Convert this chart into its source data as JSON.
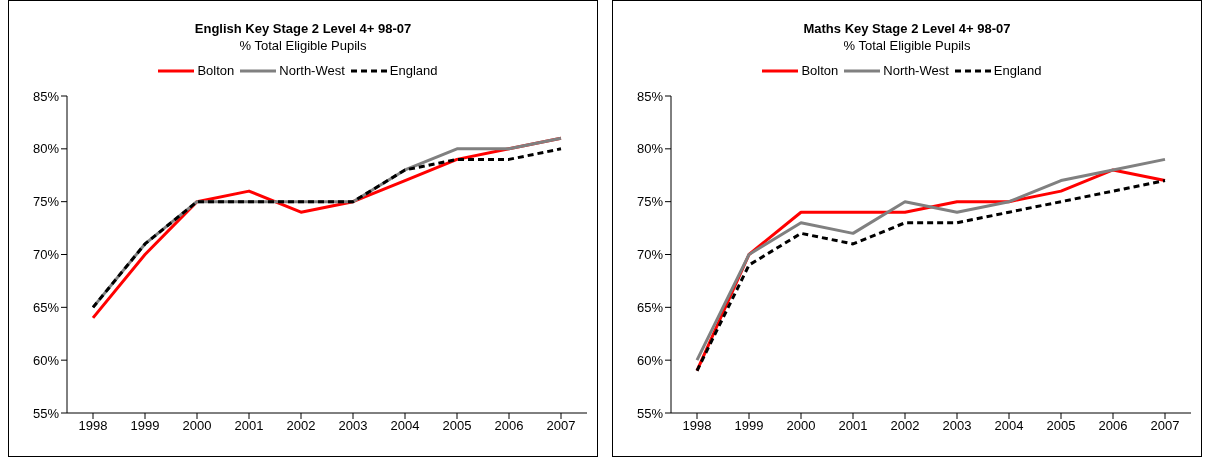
{
  "chart_data": [
    {
      "type": "line",
      "title": "English Key Stage 2 Level 4+ 98-07",
      "subtitle": "% Total Eligible Pupils",
      "categories": [
        "1998",
        "1999",
        "2000",
        "2001",
        "2002",
        "2003",
        "2004",
        "2005",
        "2006",
        "2007"
      ],
      "series": [
        {
          "name": "Bolton",
          "color": "#ff0000",
          "values": [
            64,
            70,
            75,
            76,
            74,
            75,
            77,
            79,
            80,
            81
          ]
        },
        {
          "name": "North-West",
          "color": "#808080",
          "values": [
            65,
            71,
            75,
            75,
            75,
            75,
            78,
            80,
            80,
            81
          ]
        },
        {
          "name": "England",
          "color": "#000000",
          "line_style": "dashed",
          "values": [
            65,
            71,
            75,
            75,
            75,
            75,
            78,
            79,
            79,
            80
          ]
        }
      ],
      "ylim": [
        55,
        85
      ],
      "yticks": [
        {
          "value": 55,
          "label": "55%"
        },
        {
          "value": 60,
          "label": "60%"
        },
        {
          "value": 65,
          "label": "65%"
        },
        {
          "value": 70,
          "label": "70%"
        },
        {
          "value": 75,
          "label": "75%"
        },
        {
          "value": 80,
          "label": "80%"
        },
        {
          "value": 85,
          "label": "85%"
        }
      ],
      "grid": false,
      "legend": "top",
      "marker": "none"
    },
    {
      "type": "line",
      "title": "Maths Key Stage 2 Level 4+ 98-07",
      "subtitle": "% Total Eligible Pupils",
      "categories": [
        "1998",
        "1999",
        "2000",
        "2001",
        "2002",
        "2003",
        "2004",
        "2005",
        "2006",
        "2007"
      ],
      "series": [
        {
          "name": "Bolton",
          "color": "#ff0000",
          "values": [
            59,
            70,
            74,
            74,
            74,
            75,
            75,
            76,
            78,
            77
          ]
        },
        {
          "name": "North-West",
          "color": "#808080",
          "values": [
            60,
            70,
            73,
            72,
            75,
            74,
            75,
            77,
            78,
            79
          ]
        },
        {
          "name": "England",
          "color": "#000000",
          "line_style": "dashed",
          "values": [
            59,
            69,
            72,
            71,
            73,
            73,
            74,
            75,
            76,
            77
          ]
        }
      ],
      "ylim": [
        55,
        85
      ],
      "yticks": [
        {
          "value": 55,
          "label": "55%"
        },
        {
          "value": 60,
          "label": "60%"
        },
        {
          "value": 65,
          "label": "65%"
        },
        {
          "value": 70,
          "label": "70%"
        },
        {
          "value": 75,
          "label": "75%"
        },
        {
          "value": 80,
          "label": "80%"
        },
        {
          "value": 85,
          "label": "85%"
        }
      ],
      "grid": false,
      "legend": "top",
      "marker": "none"
    }
  ]
}
